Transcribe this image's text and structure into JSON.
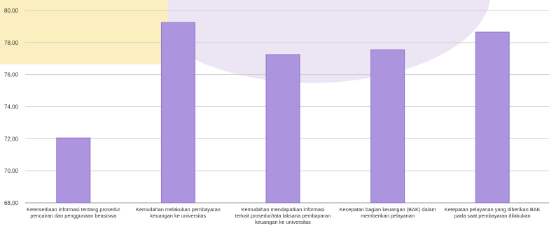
{
  "chart_data": {
    "type": "bar",
    "title": "",
    "xlabel": "",
    "ylabel": "",
    "ylim": [
      68,
      80
    ],
    "ytick_step": 2,
    "ytick_labels": [
      "68,00",
      "70,00",
      "72,00",
      "74,00",
      "76,00",
      "78,00",
      "80,00"
    ],
    "grid": true,
    "categories": [
      [
        "Ketersediaan informasi tentang prosedur",
        "pencairan dan penggunaan beasiswa"
      ],
      [
        "Kemudahan melakukan pembayaran",
        "keuangan ke universitas"
      ],
      [
        "Kemudahan mendapatkan informasi",
        "terkait prosedur/tata laksana pembayaran",
        "keuangan ke universitas"
      ],
      [
        "Kecepatan bagian keuangan (BAK) dalam",
        "memberikan pelayanan"
      ],
      [
        "Ketepatan pelayanan yang diberikan BAK",
        "pada saat pembayaran dilakukan"
      ]
    ],
    "values": [
      72.05,
      79.25,
      77.25,
      77.55,
      78.65
    ],
    "colors": {
      "bar": "#ac94de",
      "bar_stroke": "#8f76c9",
      "grid": "#cfcfcf",
      "axis": "#9a9a9a",
      "background_yellow": "#fcefbf",
      "background_purple": "#ece6f4"
    }
  }
}
